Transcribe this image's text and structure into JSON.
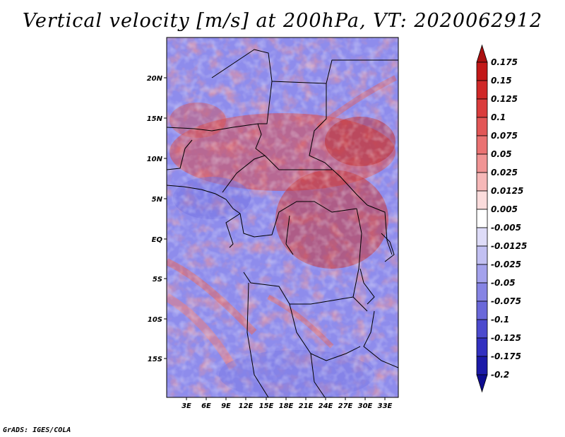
{
  "title": "Vertical velocity [m/s] at 200hPa, VT: 2020062912",
  "credit": "GrADS: IGES/COLA",
  "map": {
    "lat_ticks": [
      "20N",
      "15N",
      "10N",
      "5N",
      "EQ",
      "5S",
      "10S",
      "15S"
    ],
    "lon_ticks": [
      "3E",
      "6E",
      "9E",
      "12E",
      "15E",
      "18E",
      "21E",
      "24E",
      "27E",
      "30E",
      "33E"
    ]
  },
  "colorbar": {
    "levels": [
      "0.175",
      "0.15",
      "0.125",
      "0.1",
      "0.075",
      "0.05",
      "0.025",
      "0.0125",
      "0.005",
      "-0.005",
      "-0.0125",
      "-0.025",
      "-0.05",
      "-0.075",
      "-0.1",
      "-0.125",
      "-0.175",
      "-0.2"
    ],
    "colors": [
      "#aa1010",
      "#c21818",
      "#d02828",
      "#da3c3c",
      "#e25656",
      "#ea7272",
      "#f09494",
      "#f6b8b8",
      "#fbdcdc",
      "#ffffff",
      "#dedcf8",
      "#c2c0f2",
      "#a4a2ec",
      "#8684e4",
      "#6a68da",
      "#4c4ace",
      "#3230c0",
      "#1c1aa8",
      "#0e0c90"
    ]
  }
}
